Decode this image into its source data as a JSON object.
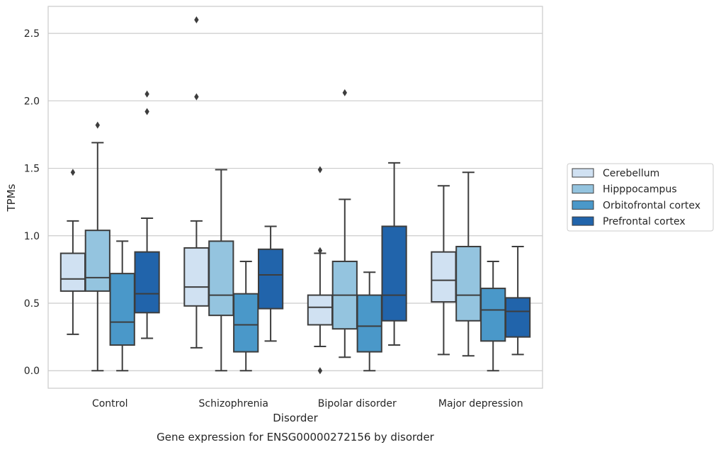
{
  "chart_data": {
    "type": "box",
    "caption": "Gene expression for ENSG00000272156 by disorder",
    "xlabel": "Disorder",
    "ylabel": "TPMs",
    "ylim": [
      -0.13,
      2.7
    ],
    "yticks": [
      0.0,
      0.5,
      1.0,
      1.5,
      2.0,
      2.5
    ],
    "ytick_labels": [
      "0.0",
      "0.5",
      "1.0",
      "1.5",
      "2.0",
      "2.5"
    ],
    "grid": "horizontal",
    "legend_position": "right",
    "categories": [
      "Control",
      "Schizophrenia",
      "Bipolar disorder",
      "Major depression"
    ],
    "series": [
      {
        "name": "Cerebellum",
        "color": "#d0e1f2",
        "boxes": [
          {
            "whislo": 0.27,
            "q1": 0.59,
            "med": 0.68,
            "q3": 0.87,
            "whishi": 1.11,
            "fliers": [
              1.47
            ]
          },
          {
            "whislo": 0.17,
            "q1": 0.48,
            "med": 0.62,
            "q3": 0.91,
            "whishi": 1.11,
            "fliers": [
              2.03,
              2.6
            ]
          },
          {
            "whislo": 0.18,
            "q1": 0.34,
            "med": 0.47,
            "q3": 0.56,
            "whishi": 0.87,
            "fliers": [
              0.0,
              0.89,
              1.49
            ]
          },
          {
            "whislo": 0.12,
            "q1": 0.51,
            "med": 0.67,
            "q3": 0.88,
            "whishi": 1.37,
            "fliers": []
          }
        ]
      },
      {
        "name": "Hipppocampus",
        "color": "#94c4df",
        "boxes": [
          {
            "whislo": 0.0,
            "q1": 0.59,
            "med": 0.69,
            "q3": 1.04,
            "whishi": 1.69,
            "fliers": [
              1.82
            ]
          },
          {
            "whislo": 0.0,
            "q1": 0.41,
            "med": 0.56,
            "q3": 0.96,
            "whishi": 1.49,
            "fliers": []
          },
          {
            "whislo": 0.1,
            "q1": 0.31,
            "med": 0.56,
            "q3": 0.81,
            "whishi": 1.27,
            "fliers": [
              2.06
            ]
          },
          {
            "whislo": 0.11,
            "q1": 0.37,
            "med": 0.56,
            "q3": 0.92,
            "whishi": 1.47,
            "fliers": []
          }
        ]
      },
      {
        "name": "Orbitofrontal cortex",
        "color": "#4a98c9",
        "boxes": [
          {
            "whislo": 0.0,
            "q1": 0.19,
            "med": 0.36,
            "q3": 0.72,
            "whishi": 0.96,
            "fliers": []
          },
          {
            "whislo": 0.0,
            "q1": 0.14,
            "med": 0.34,
            "q3": 0.57,
            "whishi": 0.81,
            "fliers": []
          },
          {
            "whislo": 0.0,
            "q1": 0.14,
            "med": 0.33,
            "q3": 0.56,
            "whishi": 0.73,
            "fliers": []
          },
          {
            "whislo": 0.0,
            "q1": 0.22,
            "med": 0.45,
            "q3": 0.61,
            "whishi": 0.81,
            "fliers": []
          }
        ]
      },
      {
        "name": "Prefrontal cortex",
        "color": "#2164ab",
        "boxes": [
          {
            "whislo": 0.24,
            "q1": 0.43,
            "med": 0.57,
            "q3": 0.88,
            "whishi": 1.13,
            "fliers": [
              1.92,
              2.05
            ]
          },
          {
            "whislo": 0.22,
            "q1": 0.46,
            "med": 0.71,
            "q3": 0.9,
            "whishi": 1.07,
            "fliers": []
          },
          {
            "whislo": 0.19,
            "q1": 0.37,
            "med": 0.56,
            "q3": 1.07,
            "whishi": 1.54,
            "fliers": []
          },
          {
            "whislo": 0.12,
            "q1": 0.25,
            "med": 0.44,
            "q3": 0.54,
            "whishi": 0.92,
            "fliers": []
          }
        ]
      }
    ]
  }
}
